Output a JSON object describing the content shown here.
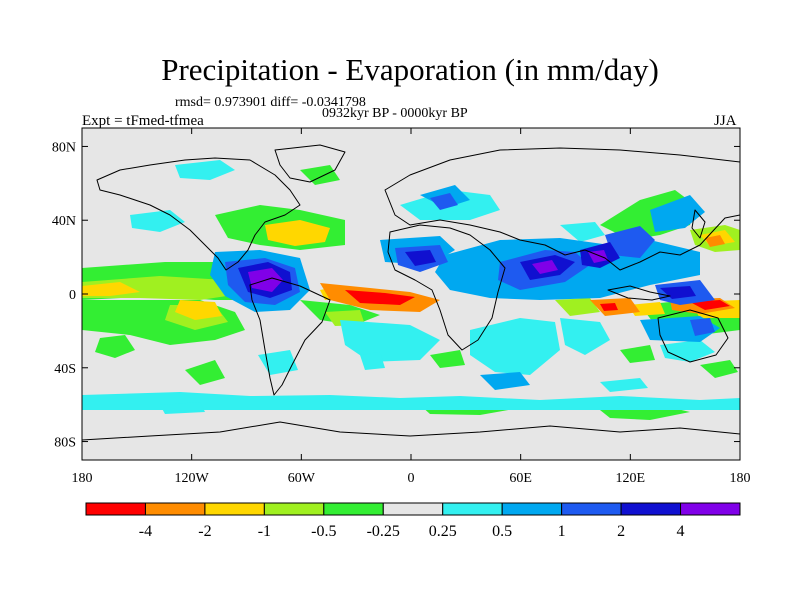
{
  "title": "Precipitation - Evaporation (in mm/day)",
  "stats": "rmsd= 0.973901  diff= -0.0341798",
  "period": "0932kyr BP - 0000kyr BP",
  "experiment": "Expt = tFmed-tfmea",
  "season": "JJA",
  "axes": {
    "lat_ticks": [
      "80N",
      "40N",
      "0",
      "40S",
      "80S"
    ],
    "lat_values": [
      80,
      40,
      0,
      -40,
      -80
    ],
    "lon_ticks": [
      "180",
      "120W",
      "60W",
      "0",
      "60E",
      "120E",
      "180"
    ],
    "lon_values": [
      -180,
      -120,
      -60,
      0,
      60,
      120,
      180
    ],
    "lat_range": [
      -90,
      90
    ],
    "lon_range": [
      -180,
      180
    ]
  },
  "colorbar": {
    "labels": [
      "-4",
      "-2",
      "-1",
      "-0.5",
      "-0.25",
      "0.25",
      "0.5",
      "1",
      "2",
      "4"
    ],
    "colors": [
      "#ff0000",
      "#ff8c00",
      "#ffd700",
      "#a0f020",
      "#33ee33",
      "#e6e6e6",
      "#33f0f0",
      "#00a8f0",
      "#1e5af0",
      "#1010d0",
      "#8000e8"
    ]
  },
  "field_colors": {
    "background": "#e6e6e6",
    "strong_negative": "#ff0000",
    "negative": "#ff8c00",
    "moderate_negative": "#ffd700",
    "weak_negative": "#a0f020",
    "slight_negative": "#33ee33",
    "slight_positive": "#33f0f0",
    "weak_positive": "#00a8f0",
    "moderate_positive": "#1e5af0",
    "positive": "#1010d0",
    "strong_positive": "#8000e8"
  }
}
